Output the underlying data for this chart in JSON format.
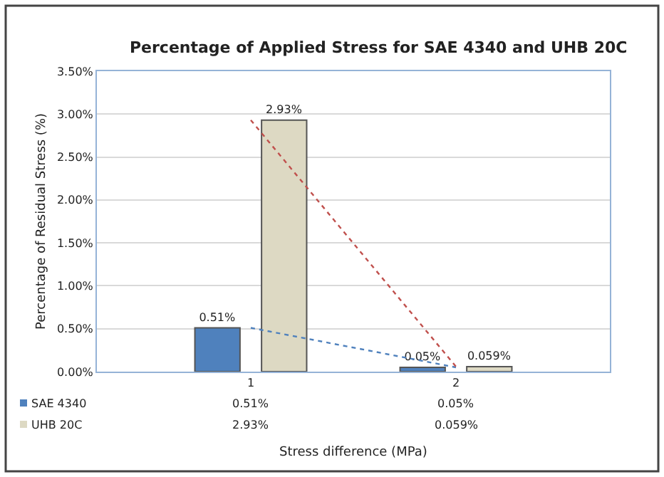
{
  "chart_data": {
    "type": "bar",
    "title": "Percentage of Applied Stress for SAE 4340 and UHB 20C",
    "xlabel": "Stress difference (MPa)",
    "ylabel": "Percentage of Residual Stress (%)",
    "categories": [
      "1",
      "2"
    ],
    "series": [
      {
        "name": "SAE 4340",
        "color": "#4f81bd",
        "values": [
          0.51,
          0.05
        ],
        "value_labels": [
          "0.51%",
          "0.05%"
        ]
      },
      {
        "name": "UHB 20C",
        "color": "#ddd9c3",
        "values": [
          2.93,
          0.059
        ],
        "value_labels": [
          "2.93%",
          "0.059%"
        ]
      },
      {
        "type": "line",
        "color": "#4f81bd",
        "line_style": "dotted",
        "values": [
          0.51,
          0.05
        ]
      },
      {
        "type": "line",
        "color": "#c0504d",
        "line_style": "dotted",
        "values": [
          2.93,
          0.059
        ]
      }
    ],
    "ylim": [
      0,
      3.5
    ],
    "yticks": [
      {
        "value": 0,
        "label": "0.00%"
      },
      {
        "value": 0.5,
        "label": "0.50%"
      },
      {
        "value": 1,
        "label": "1.00%"
      },
      {
        "value": 1.5,
        "label": "1.50%"
      },
      {
        "value": 2,
        "label": "2.00%"
      },
      {
        "value": 2.5,
        "label": "2.50%"
      },
      {
        "value": 3,
        "label": "3.00%"
      },
      {
        "value": 3.5,
        "label": "3.50%"
      }
    ],
    "grid": "y",
    "legend": "bottom left"
  }
}
